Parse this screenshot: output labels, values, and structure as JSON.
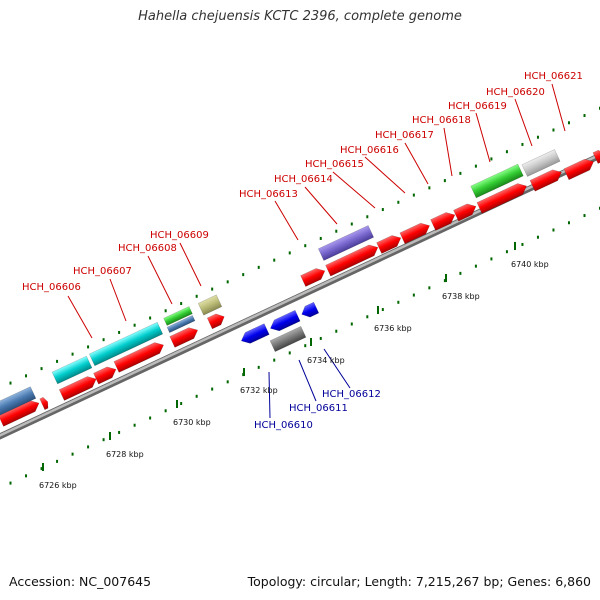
{
  "title": "Hahella chejuensis KCTC 2396, complete genome",
  "footer": {
    "accession": "Accession: NC_007645",
    "summary": "Topology: circular; Length: 7,215,267 bp; Genes: 6,860"
  },
  "axis": {
    "ticks": [
      "6726 kbp",
      "6728 kbp",
      "6730 kbp",
      "6732 kbp",
      "6734 kbp",
      "6736 kbp",
      "6738 kbp",
      "6740 kbp"
    ]
  },
  "genes_forward": [
    "HCH_06606",
    "HCH_06607",
    "HCH_06608",
    "HCH_06609",
    "HCH_06613",
    "HCH_06614",
    "HCH_06615",
    "HCH_06616",
    "HCH_06617",
    "HCH_06618",
    "HCH_06619",
    "HCH_06620",
    "HCH_06621"
  ],
  "genes_reverse": [
    "HCH_06610",
    "HCH_06611",
    "HCH_06612"
  ],
  "colors": {
    "forward_label": "#cc0000",
    "reverse_label": "#000099",
    "cds": "#ff0000",
    "reverse_cds": "#0000ee",
    "backbone": "#888888",
    "tick": "#006600",
    "cyan": "#00cccc",
    "steelblue": "#4a7ab0",
    "green": "#33cc33",
    "khaki": "#bbbb77",
    "purple": "#7766cc",
    "gray_block": "#777777",
    "silver": "#c8c8c8"
  }
}
